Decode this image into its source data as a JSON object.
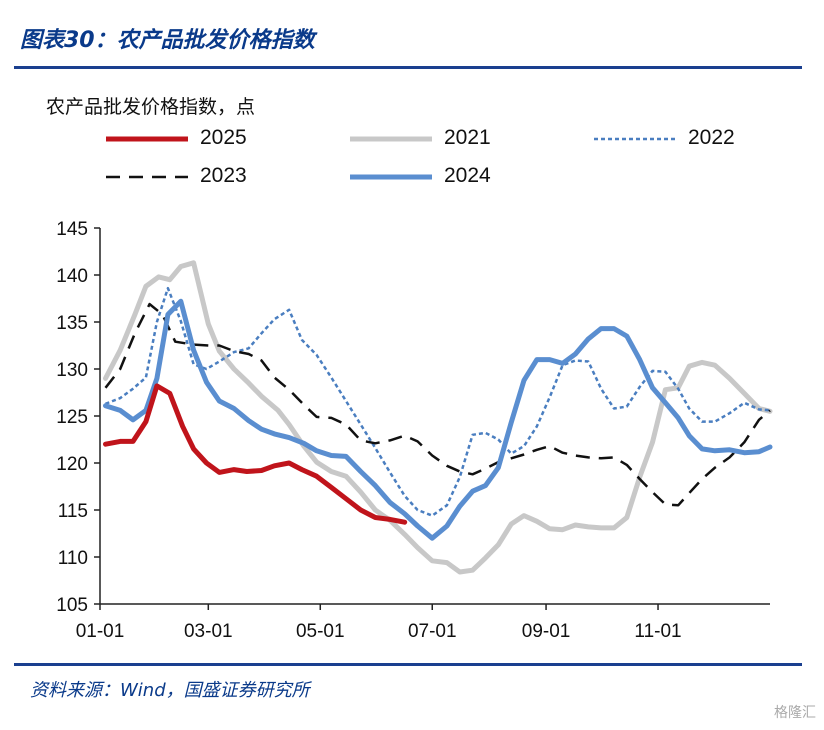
{
  "header": {
    "title": "图表30：农产品批发价格指数"
  },
  "footer": {
    "source": "资料来源：Wind，国盛证券研究所",
    "watermark": "格隆汇"
  },
  "chart_data": {
    "type": "line",
    "ylabel": "农产品批发价格指数，点",
    "ylim": [
      105,
      145
    ],
    "yticks": [
      105,
      110,
      115,
      120,
      125,
      130,
      135,
      140,
      145
    ],
    "xlim": [
      1,
      366
    ],
    "xticks": [
      {
        "label": "01-01",
        "day": 1
      },
      {
        "label": "03-01",
        "day": 60
      },
      {
        "label": "05-01",
        "day": 121
      },
      {
        "label": "07-01",
        "day": 182
      },
      {
        "label": "09-01",
        "day": 244
      },
      {
        "label": "11-01",
        "day": 305
      }
    ],
    "legend": [
      {
        "name": "2025",
        "color": "#c0141b",
        "style": "solid",
        "width": 5
      },
      {
        "name": "2021",
        "color": "#c8c8c8",
        "style": "solid",
        "width": 5
      },
      {
        "name": "2022",
        "color": "#4a7ec0",
        "style": "dotted",
        "width": 2.5
      },
      {
        "name": "2023",
        "color": "#111111",
        "style": "dashed",
        "width": 2.5
      },
      {
        "name": "2024",
        "color": "#5a8ed0",
        "style": "solid",
        "width": 5
      }
    ],
    "series": [
      {
        "name": "2025",
        "points": [
          [
            4,
            122.0
          ],
          [
            12,
            122.3
          ],
          [
            19,
            122.3
          ],
          [
            26,
            124.4
          ],
          [
            32,
            128.2
          ],
          [
            39,
            127.4
          ],
          [
            46,
            123.9
          ],
          [
            52,
            121.5
          ],
          [
            59,
            120.0
          ],
          [
            66,
            119.0
          ],
          [
            74,
            119.3
          ],
          [
            81,
            119.1
          ],
          [
            89,
            119.2
          ],
          [
            96,
            119.7
          ],
          [
            104,
            120.0
          ],
          [
            111,
            119.3
          ],
          [
            119,
            118.6
          ],
          [
            127,
            117.4
          ],
          [
            135,
            116.2
          ],
          [
            143,
            115.0
          ],
          [
            151,
            114.2
          ],
          [
            159,
            114.0
          ],
          [
            167,
            113.7
          ]
        ]
      },
      {
        "name": "2021",
        "points": [
          [
            4,
            129.0
          ],
          [
            12,
            132.0
          ],
          [
            20,
            135.8
          ],
          [
            26,
            138.8
          ],
          [
            33,
            139.8
          ],
          [
            39,
            139.5
          ],
          [
            45,
            140.9
          ],
          [
            52,
            141.3
          ],
          [
            60,
            134.8
          ],
          [
            66,
            131.9
          ],
          [
            74,
            130.0
          ],
          [
            82,
            128.5
          ],
          [
            89,
            127.1
          ],
          [
            98,
            125.6
          ],
          [
            104,
            124.1
          ],
          [
            112,
            121.8
          ],
          [
            119,
            120.1
          ],
          [
            127,
            119.1
          ],
          [
            135,
            118.6
          ],
          [
            143,
            116.9
          ],
          [
            151,
            115.0
          ],
          [
            159,
            113.9
          ],
          [
            167,
            112.4
          ],
          [
            174,
            111.0
          ],
          [
            182,
            109.6
          ],
          [
            190,
            109.4
          ],
          [
            197,
            108.4
          ],
          [
            204,
            108.6
          ],
          [
            211,
            109.9
          ],
          [
            218,
            111.3
          ],
          [
            225,
            113.5
          ],
          [
            232,
            114.4
          ],
          [
            239,
            113.8
          ],
          [
            246,
            113.0
          ],
          [
            253,
            112.9
          ],
          [
            260,
            113.4
          ],
          [
            267,
            113.2
          ],
          [
            274,
            113.1
          ],
          [
            281,
            113.1
          ],
          [
            288,
            114.2
          ],
          [
            295,
            118.5
          ],
          [
            302,
            122.2
          ],
          [
            309,
            127.8
          ],
          [
            316,
            128.0
          ],
          [
            322,
            130.3
          ],
          [
            329,
            130.7
          ],
          [
            336,
            130.4
          ],
          [
            344,
            129.0
          ],
          [
            352,
            127.4
          ],
          [
            360,
            125.8
          ],
          [
            366,
            125.5
          ]
        ]
      },
      {
        "name": "2022",
        "points": [
          [
            4,
            126.3
          ],
          [
            12,
            126.9
          ],
          [
            19,
            127.9
          ],
          [
            26,
            129.1
          ],
          [
            32,
            135.0
          ],
          [
            38,
            138.6
          ],
          [
            45,
            135.1
          ],
          [
            52,
            130.5
          ],
          [
            59,
            130.0
          ],
          [
            66,
            130.8
          ],
          [
            74,
            131.8
          ],
          [
            82,
            132.2
          ],
          [
            89,
            133.8
          ],
          [
            96,
            135.3
          ],
          [
            104,
            136.3
          ],
          [
            111,
            133.1
          ],
          [
            119,
            131.5
          ],
          [
            127,
            129.1
          ],
          [
            135,
            126.6
          ],
          [
            143,
            124.1
          ],
          [
            151,
            121.6
          ],
          [
            159,
            119.0
          ],
          [
            167,
            116.5
          ],
          [
            174,
            115.0
          ],
          [
            182,
            114.4
          ],
          [
            190,
            115.5
          ],
          [
            197,
            118.5
          ],
          [
            204,
            123.0
          ],
          [
            211,
            123.2
          ],
          [
            218,
            122.5
          ],
          [
            225,
            121.0
          ],
          [
            232,
            121.8
          ],
          [
            239,
            123.9
          ],
          [
            246,
            127.0
          ],
          [
            253,
            130.4
          ],
          [
            260,
            130.9
          ],
          [
            267,
            130.8
          ],
          [
            274,
            127.9
          ],
          [
            281,
            125.8
          ],
          [
            288,
            126.0
          ],
          [
            295,
            128.1
          ],
          [
            302,
            129.8
          ],
          [
            309,
            129.7
          ],
          [
            316,
            127.9
          ],
          [
            322,
            125.8
          ],
          [
            329,
            124.4
          ],
          [
            336,
            124.4
          ],
          [
            344,
            125.3
          ],
          [
            352,
            126.4
          ],
          [
            360,
            125.7
          ],
          [
            366,
            125.6
          ]
        ]
      },
      {
        "name": "2023",
        "points": [
          [
            4,
            128.0
          ],
          [
            12,
            130.0
          ],
          [
            20,
            133.8
          ],
          [
            28,
            136.9
          ],
          [
            35,
            135.8
          ],
          [
            42,
            132.9
          ],
          [
            52,
            132.6
          ],
          [
            60,
            132.5
          ],
          [
            66,
            132.5
          ],
          [
            74,
            131.9
          ],
          [
            82,
            131.6
          ],
          [
            89,
            130.9
          ],
          [
            96,
            129.1
          ],
          [
            104,
            127.8
          ],
          [
            112,
            126.2
          ],
          [
            119,
            124.9
          ],
          [
            127,
            124.8
          ],
          [
            135,
            124.1
          ],
          [
            143,
            122.4
          ],
          [
            151,
            122.1
          ],
          [
            159,
            122.4
          ],
          [
            167,
            122.9
          ],
          [
            174,
            122.3
          ],
          [
            182,
            120.8
          ],
          [
            190,
            119.7
          ],
          [
            197,
            119.1
          ],
          [
            204,
            118.8
          ],
          [
            211,
            119.4
          ],
          [
            218,
            120.1
          ],
          [
            225,
            120.5
          ],
          [
            232,
            120.9
          ],
          [
            239,
            121.4
          ],
          [
            246,
            121.8
          ],
          [
            253,
            121.1
          ],
          [
            260,
            120.8
          ],
          [
            267,
            120.6
          ],
          [
            274,
            120.5
          ],
          [
            281,
            120.6
          ],
          [
            288,
            119.8
          ],
          [
            295,
            118.3
          ],
          [
            302,
            116.9
          ],
          [
            309,
            115.6
          ],
          [
            316,
            115.5
          ],
          [
            322,
            116.8
          ],
          [
            329,
            118.3
          ],
          [
            336,
            119.5
          ],
          [
            344,
            120.6
          ],
          [
            352,
            122.2
          ],
          [
            360,
            124.6
          ],
          [
            366,
            125.6
          ]
        ]
      },
      {
        "name": "2024",
        "points": [
          [
            4,
            126.1
          ],
          [
            12,
            125.6
          ],
          [
            19,
            124.6
          ],
          [
            26,
            125.6
          ],
          [
            32,
            129.0
          ],
          [
            38,
            135.8
          ],
          [
            45,
            137.2
          ],
          [
            52,
            132.0
          ],
          [
            59,
            128.6
          ],
          [
            66,
            126.6
          ],
          [
            74,
            125.8
          ],
          [
            82,
            124.5
          ],
          [
            89,
            123.6
          ],
          [
            96,
            123.1
          ],
          [
            104,
            122.7
          ],
          [
            112,
            122.1
          ],
          [
            119,
            121.3
          ],
          [
            127,
            120.8
          ],
          [
            135,
            120.7
          ],
          [
            143,
            119.1
          ],
          [
            151,
            117.6
          ],
          [
            159,
            115.8
          ],
          [
            167,
            114.6
          ],
          [
            174,
            113.3
          ],
          [
            182,
            112.0
          ],
          [
            190,
            113.3
          ],
          [
            197,
            115.4
          ],
          [
            204,
            117.0
          ],
          [
            211,
            117.6
          ],
          [
            218,
            119.5
          ],
          [
            225,
            124.3
          ],
          [
            232,
            128.8
          ],
          [
            239,
            131.0
          ],
          [
            246,
            131.0
          ],
          [
            253,
            130.6
          ],
          [
            260,
            131.6
          ],
          [
            267,
            133.2
          ],
          [
            274,
            134.3
          ],
          [
            281,
            134.3
          ],
          [
            288,
            133.5
          ],
          [
            295,
            131.0
          ],
          [
            302,
            128.0
          ],
          [
            309,
            126.4
          ],
          [
            316,
            124.8
          ],
          [
            322,
            122.9
          ],
          [
            329,
            121.5
          ],
          [
            336,
            121.3
          ],
          [
            344,
            121.4
          ],
          [
            352,
            121.1
          ],
          [
            360,
            121.2
          ],
          [
            366,
            121.7
          ]
        ]
      }
    ]
  }
}
